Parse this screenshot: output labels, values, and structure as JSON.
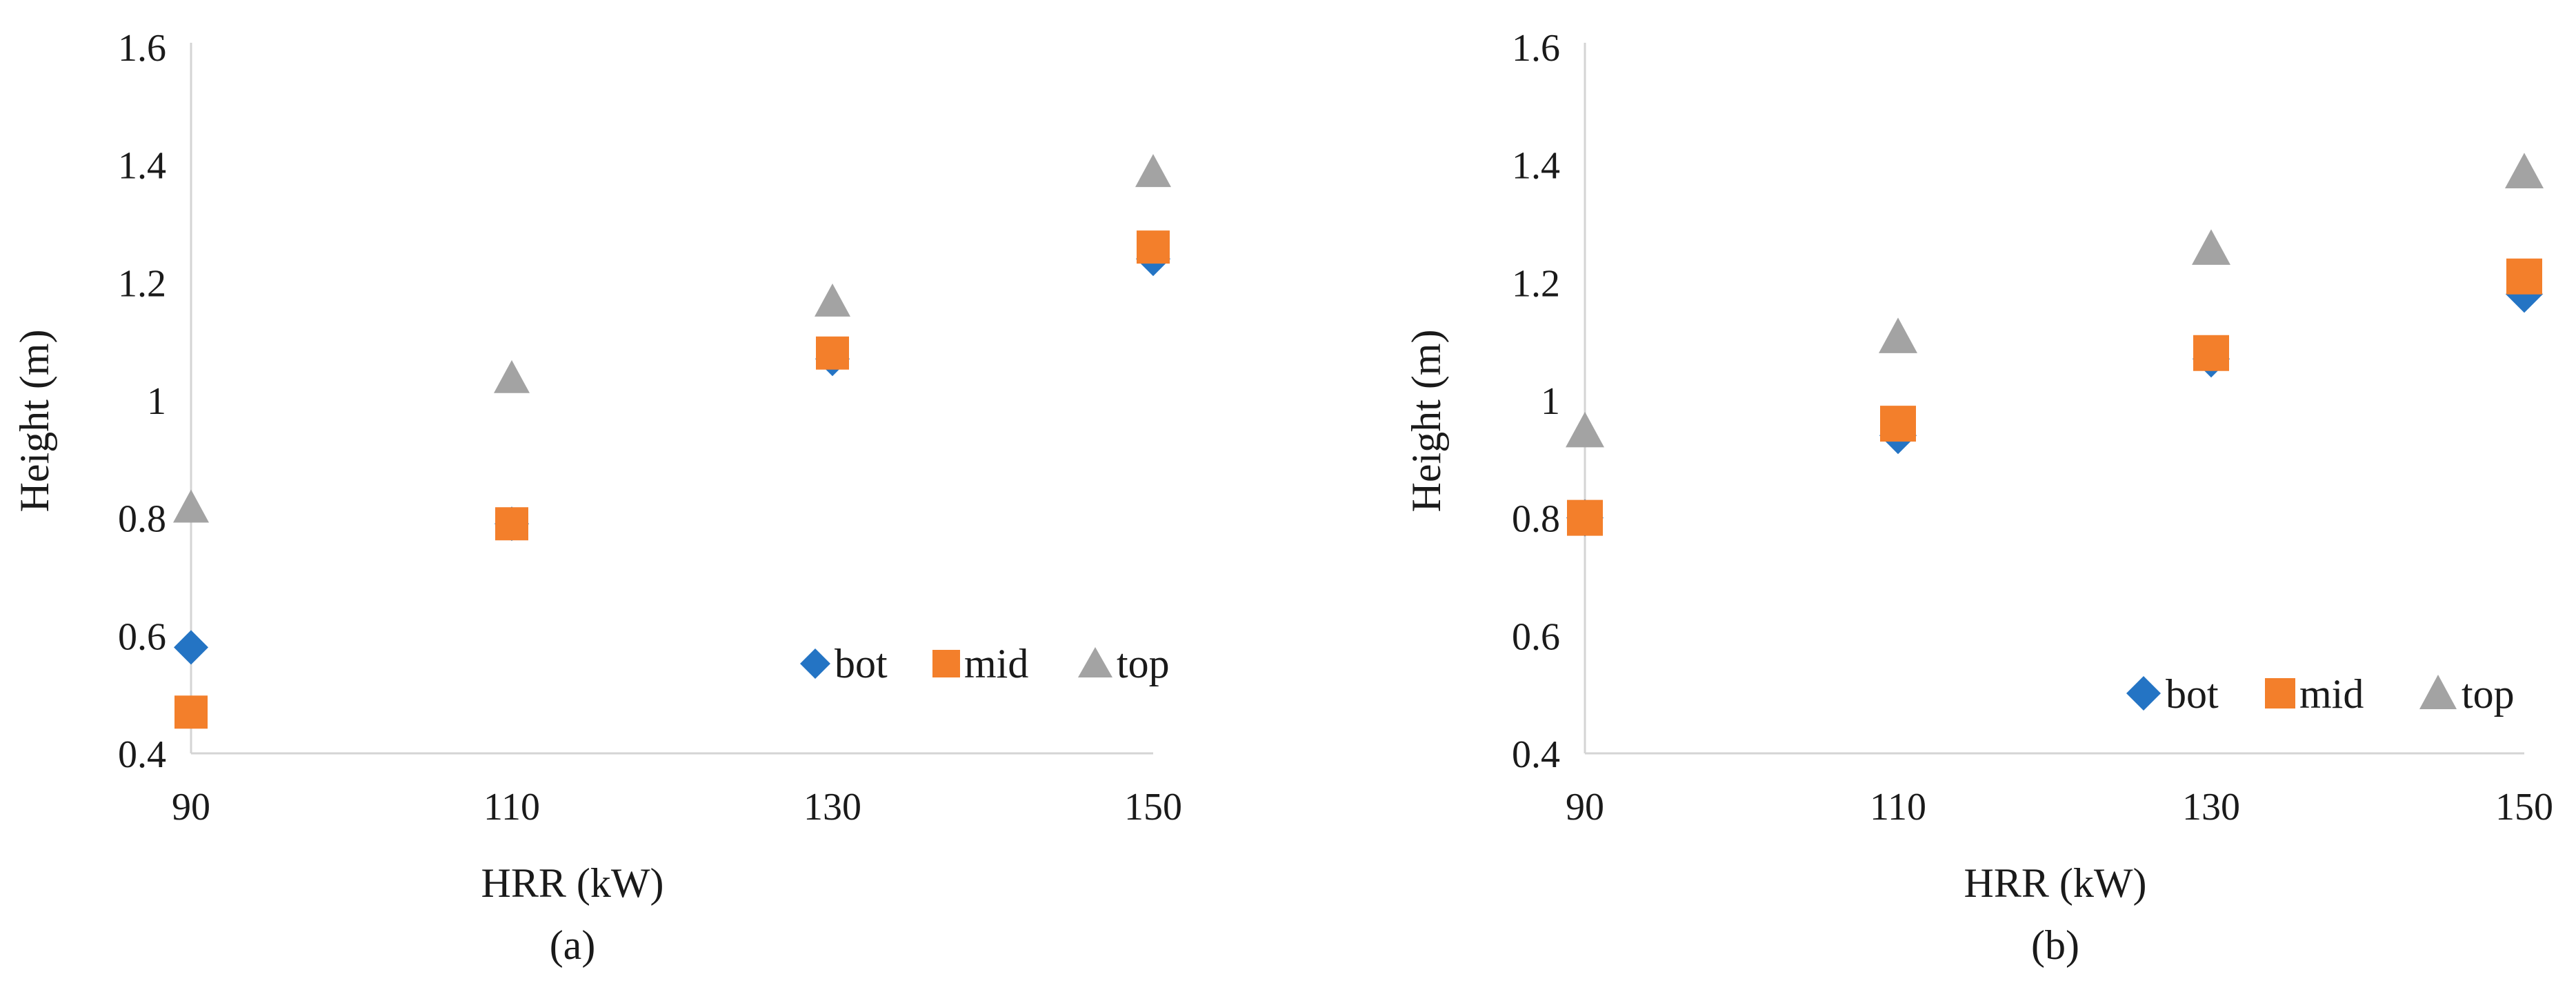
{
  "chart_data": [
    {
      "type": "scatter",
      "caption": "(a)",
      "xlabel": "HRR (kW)",
      "ylabel": "Height (m)",
      "xlim": [
        90,
        150
      ],
      "ylim": [
        0.4,
        1.6
      ],
      "x_ticks": [
        "90",
        "110",
        "130",
        "150"
      ],
      "y_ticks": [
        "0.4",
        "0.6",
        "0.8",
        "1",
        "1.2",
        "1.4",
        "1.6"
      ],
      "grid": false,
      "legend_position": "bottom-right",
      "x": [
        90,
        110,
        130,
        150
      ],
      "series": [
        {
          "name": "bot",
          "marker": "diamond",
          "color": "#2474C4",
          "values": [
            0.58,
            0.79,
            1.07,
            1.24
          ]
        },
        {
          "name": "mid",
          "marker": "square",
          "color": "#F37F2B",
          "values": [
            0.47,
            0.79,
            1.08,
            1.26
          ]
        },
        {
          "name": "top",
          "marker": "triangle",
          "color": "#A3A3A3",
          "values": [
            0.82,
            1.04,
            1.17,
            1.39
          ]
        }
      ]
    },
    {
      "type": "scatter",
      "caption": "(b)",
      "xlabel": "HRR (kW)",
      "ylabel": "Height (m)",
      "xlim": [
        90,
        150
      ],
      "ylim": [
        0.4,
        1.6
      ],
      "x_ticks": [
        "90",
        "110",
        "130",
        "150"
      ],
      "y_ticks": [
        "0.4",
        "0.6",
        "0.8",
        "1",
        "1.2",
        "1.4",
        "1.6"
      ],
      "grid": false,
      "legend_position": "bottom-right",
      "x": [
        90,
        110,
        130,
        150
      ],
      "series": [
        {
          "name": "bot",
          "marker": "diamond",
          "color": "#2474C4",
          "values": [
            0.8,
            0.94,
            1.07,
            1.18
          ]
        },
        {
          "name": "mid",
          "marker": "square",
          "color": "#F37F2B",
          "values": [
            0.8,
            0.96,
            1.08,
            1.21
          ]
        },
        {
          "name": "top",
          "marker": "triangle",
          "color": "#A3A3A3",
          "values": [
            0.95,
            1.11,
            1.26,
            1.39
          ]
        }
      ]
    }
  ]
}
